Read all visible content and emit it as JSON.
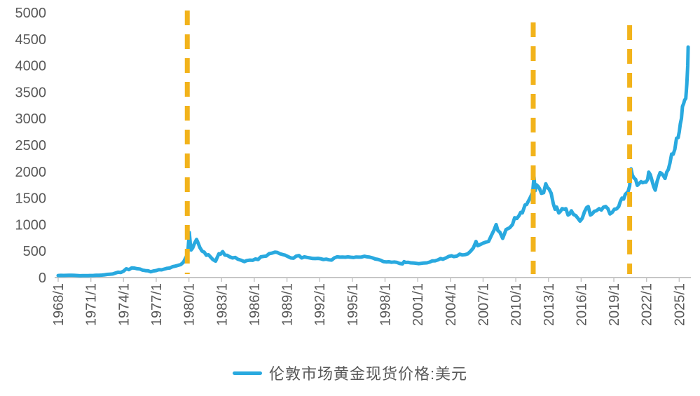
{
  "chart_data": {
    "type": "line",
    "title": "",
    "xlabel": "",
    "ylabel": "",
    "y_axis": {
      "ticks": [
        0,
        500,
        1000,
        1500,
        2000,
        2500,
        3000,
        3500,
        4000,
        4500,
        5000
      ],
      "range": [
        0,
        5000
      ],
      "grid": false
    },
    "x_axis": {
      "tick_labels": [
        "1968/1",
        "1971/1",
        "1974/1",
        "1977/1",
        "1980/1",
        "1983/1",
        "1986/1",
        "1989/1",
        "1992/1",
        "1995/1",
        "1998/1",
        "2001/1",
        "2004/1",
        "2007/1",
        "2010/1",
        "2013/1",
        "2016/1",
        "2019/1",
        "2022/1",
        "2025/1"
      ],
      "tick_years": [
        1968,
        1971,
        1974,
        1977,
        1980,
        1983,
        1986,
        1989,
        1992,
        1995,
        1998,
        2001,
        2004,
        2007,
        2010,
        2013,
        2016,
        2019,
        2022,
        2025
      ],
      "range_years": [
        1967.8,
        2026.3
      ]
    },
    "legend": {
      "position": "bottom",
      "label": "伦敦市场黄金现货价格:美元"
    },
    "annotations": {
      "vlines_years": [
        1979.85,
        2011.6,
        2020.45
      ],
      "style": "dashed",
      "color": "#F2B31B"
    },
    "series": [
      {
        "name": "伦敦市场黄金现货价格:美元",
        "color": "#29A9DF",
        "points": [
          [
            1968.0,
            39
          ],
          [
            1968.25,
            41
          ],
          [
            1968.5,
            40
          ],
          [
            1968.75,
            41
          ],
          [
            1969.0,
            42
          ],
          [
            1969.25,
            43
          ],
          [
            1969.5,
            41
          ],
          [
            1969.75,
            38
          ],
          [
            1970.0,
            35
          ],
          [
            1970.25,
            36
          ],
          [
            1970.5,
            36
          ],
          [
            1970.75,
            37
          ],
          [
            1971.0,
            38
          ],
          [
            1971.25,
            40
          ],
          [
            1971.5,
            42
          ],
          [
            1971.75,
            43
          ],
          [
            1972.0,
            46
          ],
          [
            1972.25,
            52
          ],
          [
            1972.5,
            60
          ],
          [
            1972.75,
            63
          ],
          [
            1973.0,
            67
          ],
          [
            1973.25,
            85
          ],
          [
            1973.5,
            100
          ],
          [
            1973.75,
            95
          ],
          [
            1974.0,
            120
          ],
          [
            1974.25,
            165
          ],
          [
            1974.5,
            150
          ],
          [
            1974.75,
            183
          ],
          [
            1975.0,
            178
          ],
          [
            1975.25,
            167
          ],
          [
            1975.5,
            162
          ],
          [
            1975.75,
            140
          ],
          [
            1976.0,
            131
          ],
          [
            1976.25,
            127
          ],
          [
            1976.5,
            110
          ],
          [
            1976.75,
            125
          ],
          [
            1977.0,
            132
          ],
          [
            1977.25,
            148
          ],
          [
            1977.5,
            145
          ],
          [
            1977.75,
            160
          ],
          [
            1978.0,
            175
          ],
          [
            1978.25,
            180
          ],
          [
            1978.5,
            205
          ],
          [
            1978.75,
            215
          ],
          [
            1979.0,
            230
          ],
          [
            1979.25,
            245
          ],
          [
            1979.5,
            290
          ],
          [
            1979.75,
            390
          ],
          [
            1979.9,
            460
          ],
          [
            1980.04,
            850
          ],
          [
            1980.12,
            650
          ],
          [
            1980.2,
            520
          ],
          [
            1980.35,
            560
          ],
          [
            1980.5,
            640
          ],
          [
            1980.7,
            720
          ],
          [
            1980.85,
            650
          ],
          [
            1981.0,
            570
          ],
          [
            1981.2,
            500
          ],
          [
            1981.4,
            480
          ],
          [
            1981.6,
            420
          ],
          [
            1981.8,
            430
          ],
          [
            1982.0,
            385
          ],
          [
            1982.2,
            340
          ],
          [
            1982.45,
            310
          ],
          [
            1982.6,
            380
          ],
          [
            1982.75,
            450
          ],
          [
            1982.9,
            440
          ],
          [
            1983.1,
            490
          ],
          [
            1983.3,
            425
          ],
          [
            1983.5,
            420
          ],
          [
            1983.75,
            390
          ],
          [
            1984.0,
            370
          ],
          [
            1984.25,
            380
          ],
          [
            1984.5,
            345
          ],
          [
            1984.75,
            330
          ],
          [
            1985.1,
            300
          ],
          [
            1985.3,
            320
          ],
          [
            1985.6,
            330
          ],
          [
            1985.85,
            325
          ],
          [
            1986.1,
            350
          ],
          [
            1986.35,
            340
          ],
          [
            1986.6,
            390
          ],
          [
            1986.85,
            400
          ],
          [
            1987.1,
            405
          ],
          [
            1987.35,
            450
          ],
          [
            1987.6,
            460
          ],
          [
            1987.9,
            480
          ],
          [
            1988.1,
            475
          ],
          [
            1988.35,
            450
          ],
          [
            1988.6,
            435
          ],
          [
            1988.85,
            420
          ],
          [
            1989.1,
            395
          ],
          [
            1989.35,
            370
          ],
          [
            1989.6,
            365
          ],
          [
            1989.85,
            405
          ],
          [
            1990.1,
            415
          ],
          [
            1990.35,
            370
          ],
          [
            1990.6,
            390
          ],
          [
            1990.85,
            380
          ],
          [
            1991.1,
            370
          ],
          [
            1991.35,
            360
          ],
          [
            1991.6,
            358
          ],
          [
            1991.85,
            362
          ],
          [
            1992.1,
            355
          ],
          [
            1992.35,
            340
          ],
          [
            1992.6,
            348
          ],
          [
            1992.85,
            335
          ],
          [
            1993.1,
            330
          ],
          [
            1993.35,
            372
          ],
          [
            1993.6,
            392
          ],
          [
            1993.85,
            385
          ],
          [
            1994.1,
            386
          ],
          [
            1994.35,
            384
          ],
          [
            1994.6,
            390
          ],
          [
            1994.85,
            383
          ],
          [
            1995.1,
            378
          ],
          [
            1995.35,
            388
          ],
          [
            1995.6,
            385
          ],
          [
            1995.85,
            387
          ],
          [
            1996.1,
            402
          ],
          [
            1996.35,
            392
          ],
          [
            1996.6,
            385
          ],
          [
            1996.85,
            372
          ],
          [
            1997.1,
            350
          ],
          [
            1997.35,
            342
          ],
          [
            1997.6,
            325
          ],
          [
            1997.85,
            300
          ],
          [
            1998.1,
            295
          ],
          [
            1998.35,
            298
          ],
          [
            1998.6,
            288
          ],
          [
            1998.85,
            293
          ],
          [
            1999.1,
            286
          ],
          [
            1999.35,
            266
          ],
          [
            1999.6,
            258
          ],
          [
            1999.75,
            300
          ],
          [
            1999.9,
            285
          ],
          [
            2000.1,
            288
          ],
          [
            2000.35,
            278
          ],
          [
            2000.6,
            275
          ],
          [
            2000.85,
            268
          ],
          [
            2001.1,
            262
          ],
          [
            2001.35,
            268
          ],
          [
            2001.6,
            275
          ],
          [
            2001.85,
            278
          ],
          [
            2002.1,
            292
          ],
          [
            2002.35,
            315
          ],
          [
            2002.6,
            316
          ],
          [
            2002.85,
            332
          ],
          [
            2003.1,
            358
          ],
          [
            2003.3,
            345
          ],
          [
            2003.6,
            372
          ],
          [
            2003.85,
            400
          ],
          [
            2004.1,
            412
          ],
          [
            2004.3,
            395
          ],
          [
            2004.6,
            405
          ],
          [
            2004.85,
            442
          ],
          [
            2005.1,
            426
          ],
          [
            2005.35,
            432
          ],
          [
            2005.6,
            448
          ],
          [
            2005.85,
            498
          ],
          [
            2006.1,
            558
          ],
          [
            2006.35,
            680
          ],
          [
            2006.5,
            600
          ],
          [
            2006.75,
            625
          ],
          [
            2007.0,
            650
          ],
          [
            2007.25,
            668
          ],
          [
            2007.5,
            680
          ],
          [
            2007.75,
            790
          ],
          [
            2008.0,
            895
          ],
          [
            2008.2,
            1000
          ],
          [
            2008.35,
            890
          ],
          [
            2008.55,
            850
          ],
          [
            2008.8,
            740
          ],
          [
            2008.95,
            820
          ],
          [
            2009.1,
            905
          ],
          [
            2009.25,
            920
          ],
          [
            2009.45,
            940
          ],
          [
            2009.7,
            1000
          ],
          [
            2009.9,
            1130
          ],
          [
            2010.1,
            1115
          ],
          [
            2010.3,
            1170
          ],
          [
            2010.45,
            1230
          ],
          [
            2010.6,
            1220
          ],
          [
            2010.85,
            1370
          ],
          [
            2011.0,
            1380
          ],
          [
            2011.15,
            1440
          ],
          [
            2011.35,
            1520
          ],
          [
            2011.55,
            1610
          ],
          [
            2011.67,
            1900
          ],
          [
            2011.78,
            1640
          ],
          [
            2011.9,
            1750
          ],
          [
            2012.05,
            1720
          ],
          [
            2012.2,
            1670
          ],
          [
            2012.35,
            1590
          ],
          [
            2012.55,
            1600
          ],
          [
            2012.75,
            1770
          ],
          [
            2012.9,
            1700
          ],
          [
            2013.05,
            1670
          ],
          [
            2013.25,
            1590
          ],
          [
            2013.45,
            1390
          ],
          [
            2013.6,
            1290
          ],
          [
            2013.75,
            1330
          ],
          [
            2013.95,
            1220
          ],
          [
            2014.1,
            1250
          ],
          [
            2014.25,
            1300
          ],
          [
            2014.45,
            1290
          ],
          [
            2014.6,
            1300
          ],
          [
            2014.8,
            1180
          ],
          [
            2014.95,
            1200
          ],
          [
            2015.1,
            1260
          ],
          [
            2015.3,
            1190
          ],
          [
            2015.5,
            1170
          ],
          [
            2015.7,
            1120
          ],
          [
            2015.9,
            1065
          ],
          [
            2016.1,
            1120
          ],
          [
            2016.3,
            1240
          ],
          [
            2016.5,
            1320
          ],
          [
            2016.65,
            1340
          ],
          [
            2016.85,
            1180
          ],
          [
            2017.0,
            1200
          ],
          [
            2017.2,
            1250
          ],
          [
            2017.4,
            1260
          ],
          [
            2017.65,
            1300
          ],
          [
            2017.85,
            1275
          ],
          [
            2018.05,
            1330
          ],
          [
            2018.25,
            1340
          ],
          [
            2018.45,
            1300
          ],
          [
            2018.65,
            1200
          ],
          [
            2018.85,
            1230
          ],
          [
            2019.05,
            1290
          ],
          [
            2019.25,
            1295
          ],
          [
            2019.45,
            1340
          ],
          [
            2019.6,
            1440
          ],
          [
            2019.75,
            1500
          ],
          [
            2019.9,
            1480
          ],
          [
            2020.05,
            1570
          ],
          [
            2020.2,
            1600
          ],
          [
            2020.3,
            1620
          ],
          [
            2020.45,
            1730
          ],
          [
            2020.58,
            2050
          ],
          [
            2020.7,
            1930
          ],
          [
            2020.85,
            1880
          ],
          [
            2021.0,
            1850
          ],
          [
            2021.15,
            1740
          ],
          [
            2021.35,
            1780
          ],
          [
            2021.5,
            1810
          ],
          [
            2021.65,
            1790
          ],
          [
            2021.8,
            1800
          ],
          [
            2021.95,
            1800
          ],
          [
            2022.1,
            1850
          ],
          [
            2022.2,
            1990
          ],
          [
            2022.35,
            1940
          ],
          [
            2022.5,
            1830
          ],
          [
            2022.65,
            1720
          ],
          [
            2022.8,
            1650
          ],
          [
            2022.95,
            1800
          ],
          [
            2023.1,
            1900
          ],
          [
            2023.25,
            1980
          ],
          [
            2023.4,
            1960
          ],
          [
            2023.55,
            1920
          ],
          [
            2023.7,
            1870
          ],
          [
            2023.85,
            1990
          ],
          [
            2024.0,
            2040
          ],
          [
            2024.15,
            2160
          ],
          [
            2024.3,
            2330
          ],
          [
            2024.45,
            2330
          ],
          [
            2024.6,
            2420
          ],
          [
            2024.75,
            2630
          ],
          [
            2024.9,
            2640
          ],
          [
            2025.0,
            2750
          ],
          [
            2025.1,
            2900
          ],
          [
            2025.2,
            3000
          ],
          [
            2025.3,
            3230
          ],
          [
            2025.4,
            3280
          ],
          [
            2025.5,
            3350
          ],
          [
            2025.6,
            3380
          ],
          [
            2025.7,
            3650
          ],
          [
            2025.78,
            4000
          ],
          [
            2025.82,
            4350
          ]
        ]
      }
    ]
  },
  "colors": {
    "line": "#29A9DF",
    "vline": "#F2B31B",
    "axis": "#C6C6C6",
    "text": "#595959",
    "background": "#FFFFFF"
  }
}
